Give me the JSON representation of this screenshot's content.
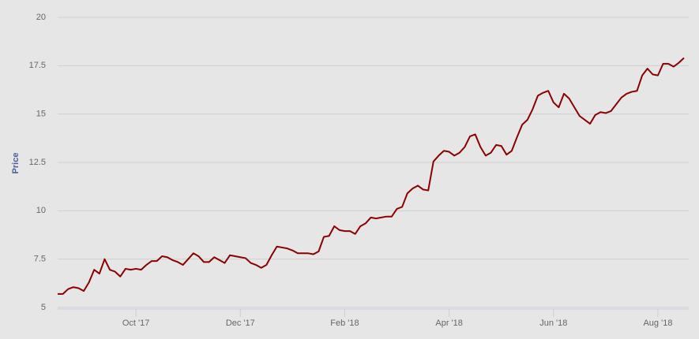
{
  "chart_data": {
    "type": "line",
    "y_label": "Price",
    "categories": [
      null,
      null,
      null,
      null,
      null,
      null,
      null,
      null,
      null,
      null,
      null,
      null,
      null,
      null,
      null,
      "Oct '17",
      null,
      null,
      null,
      null,
      null,
      null,
      null,
      null,
      null,
      null,
      null,
      null,
      null,
      null,
      null,
      null,
      null,
      null,
      null,
      "Dec '17",
      null,
      null,
      null,
      null,
      null,
      null,
      null,
      null,
      null,
      null,
      null,
      null,
      null,
      null,
      null,
      null,
      null,
      null,
      null,
      "Feb '18",
      null,
      null,
      null,
      null,
      null,
      null,
      null,
      null,
      null,
      null,
      null,
      null,
      null,
      null,
      null,
      null,
      null,
      null,
      null,
      "Apr '18",
      null,
      null,
      null,
      null,
      null,
      null,
      null,
      null,
      null,
      null,
      null,
      null,
      null,
      null,
      null,
      null,
      null,
      null,
      null,
      "Jun '18",
      null,
      null,
      null,
      null,
      null,
      null,
      null,
      null,
      null,
      null,
      null,
      null,
      null,
      null,
      null,
      null,
      null,
      null,
      null,
      "Aug '18",
      null,
      null,
      null,
      null,
      null
    ],
    "values": [
      5.7,
      5.7,
      5.95,
      6.05,
      6.0,
      5.85,
      6.3,
      6.95,
      6.75,
      7.5,
      6.95,
      6.85,
      6.6,
      7.0,
      6.95,
      7.0,
      6.95,
      7.2,
      7.4,
      7.4,
      7.65,
      7.6,
      7.45,
      7.35,
      7.2,
      7.5,
      7.8,
      7.65,
      7.35,
      7.35,
      7.6,
      7.45,
      7.3,
      7.7,
      7.65,
      7.6,
      7.55,
      7.3,
      7.2,
      7.05,
      7.2,
      7.7,
      8.15,
      8.1,
      8.05,
      7.95,
      7.8,
      7.8,
      7.8,
      7.75,
      7.9,
      8.65,
      8.7,
      9.2,
      9.0,
      8.95,
      8.95,
      8.8,
      9.2,
      9.35,
      9.65,
      9.6,
      9.65,
      9.7,
      9.7,
      10.1,
      10.2,
      10.9,
      11.15,
      11.3,
      11.1,
      11.05,
      12.55,
      12.85,
      13.1,
      13.05,
      12.85,
      13.0,
      13.3,
      13.85,
      13.95,
      13.3,
      12.85,
      13.0,
      13.4,
      13.35,
      12.9,
      13.1,
      13.8,
      14.45,
      14.7,
      15.25,
      15.95,
      16.1,
      16.2,
      15.6,
      15.35,
      16.05,
      15.8,
      15.35,
      14.9,
      14.7,
      14.5,
      14.95,
      15.1,
      15.05,
      15.15,
      15.5,
      15.85,
      16.05,
      16.15,
      16.2,
      17.0,
      17.35,
      17.05,
      17.0,
      17.6,
      17.6,
      17.45,
      17.65,
      17.9
    ],
    "color": "#8b0000",
    "ylim": [
      5,
      20
    ],
    "yticks": [
      5,
      7.5,
      10,
      12.5,
      15,
      17.5,
      20
    ],
    "grid": true
  }
}
